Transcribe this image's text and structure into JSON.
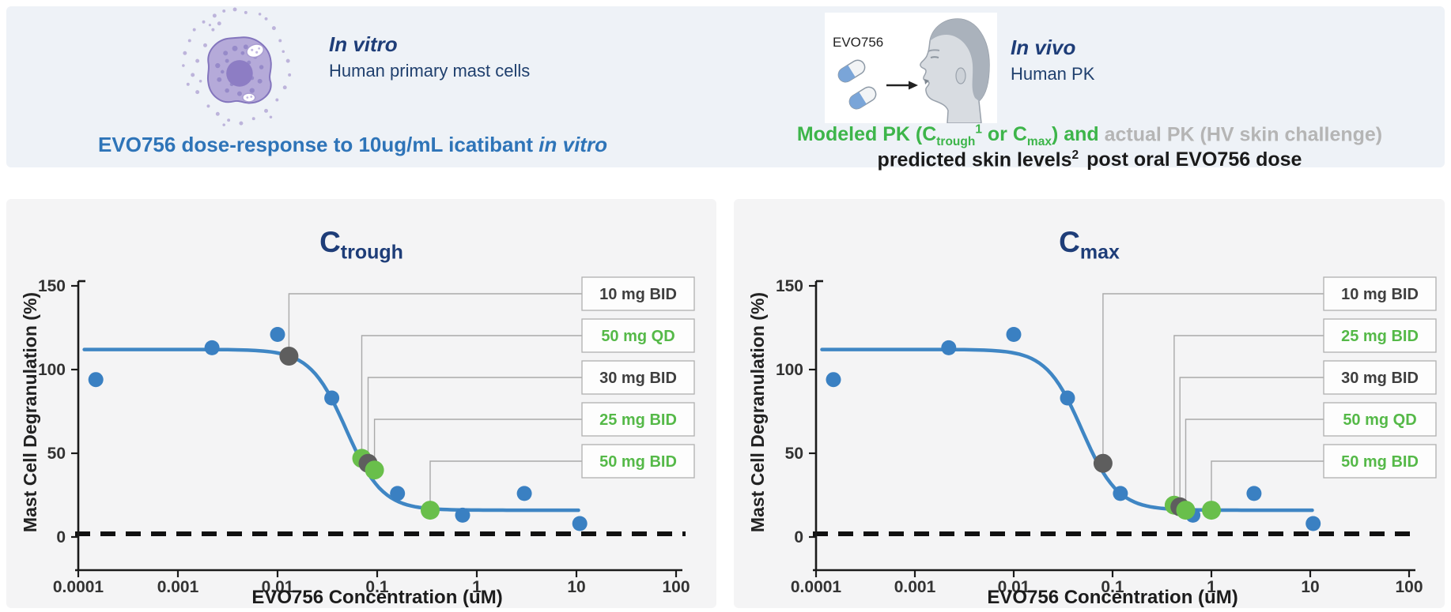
{
  "header": {
    "in_vitro": {
      "title": "In vitro",
      "subtitle": "Human primary mast cells"
    },
    "in_vivo": {
      "title": "In vivo",
      "subtitle": "Human PK",
      "pill_label": "EVO756"
    },
    "left_caption": {
      "main": "EVO756 dose-response to 10ug/mL icatibant ",
      "italic_suffix": "in vitro"
    },
    "right_caption": {
      "line1": {
        "p1": "Modeled PK (C",
        "sub1": "trough",
        "sup1": "1",
        "p2": " or C",
        "sub2": "max",
        "p3": ") and ",
        "gray_part": "actual PK (HV skin challenge)"
      },
      "line2": {
        "main": "predicted skin levels",
        "sup": "2",
        "rest": "post oral EVO756 dose"
      }
    }
  },
  "colors": {
    "navy": "#1e3d78",
    "caption_blue": "#2e74b8",
    "caption_green": "#3db54a",
    "caption_gray": "#b5b5b5",
    "curve_blue": "#3f86c4",
    "dot_blue": "#3a80c2",
    "dot_gray": "#5e5e5e",
    "dot_green": "#69bf4b",
    "legend_dark": "#3f3f3f",
    "legend_green": "#55b948",
    "connector": "#a9a9a9",
    "axis": "#1a1a1a"
  },
  "chart_data": [
    {
      "id": "Ctrough",
      "type": "scatter",
      "title_main": "C",
      "title_sub": "trough",
      "xlabel": "EVO756 Concentration (uM)",
      "ylabel": "Mast Cell Degranulation (%)",
      "x_scale": "log",
      "x_ticks": [
        0.0001,
        0.001,
        0.01,
        0.1,
        1,
        10,
        100
      ],
      "x_tick_labels": [
        "0.0001",
        "0.001",
        "0.01",
        "0.1",
        "1",
        "10",
        "100"
      ],
      "y_ticks": [
        0,
        50,
        100,
        150
      ],
      "ylim": [
        0,
        150
      ],
      "baseline": {
        "y": 0,
        "style": "dashed"
      },
      "series": [
        {
          "name": "EVO756 in vitro dose-response (human primary mast cells)",
          "marker": "circle",
          "color_key": "dot_blue",
          "points": [
            [
              0.00015,
              94
            ],
            [
              0.0022,
              113
            ],
            [
              0.01,
              121
            ],
            [
              0.035,
              83
            ],
            [
              0.16,
              26
            ],
            [
              0.72,
              13
            ],
            [
              3,
              26
            ],
            [
              10.8,
              8
            ]
          ]
        }
      ],
      "curve_fit": {
        "type": "4PL",
        "top": 112,
        "bottom": 16,
        "ic50_uM": 0.049,
        "hill": 2.4
      },
      "callouts": [
        {
          "label": "10 mg BID",
          "text_color": "dark",
          "marker_color": "gray",
          "point": [
            0.013,
            108
          ]
        },
        {
          "label": "50 mg QD",
          "text_color": "green",
          "marker_color": "green",
          "point": [
            0.07,
            47
          ]
        },
        {
          "label": "30 mg BID",
          "text_color": "dark",
          "marker_color": "gray",
          "point": [
            0.081,
            44
          ]
        },
        {
          "label": "25 mg BID",
          "text_color": "green",
          "marker_color": "green",
          "point": [
            0.094,
            40
          ]
        },
        {
          "label": "50 mg BID",
          "text_color": "green",
          "marker_color": "green",
          "point": [
            0.34,
            16
          ]
        }
      ]
    },
    {
      "id": "Cmax",
      "type": "scatter",
      "title_main": "C",
      "title_sub": "max",
      "xlabel": "EVO756 Concentration (uM)",
      "ylabel": "Mast Cell Degranulation (%)",
      "x_scale": "log",
      "x_ticks": [
        0.0001,
        0.001,
        0.01,
        0.1,
        1,
        10,
        100
      ],
      "x_tick_labels": [
        "0.0001",
        "0.001",
        "0.01",
        "0.1",
        "1",
        "10",
        "100"
      ],
      "y_ticks": [
        0,
        50,
        100,
        150
      ],
      "ylim": [
        0,
        150
      ],
      "baseline": {
        "y": 0,
        "style": "dashed"
      },
      "series": [
        {
          "name": "EVO756 in vitro dose-response (human primary mast cells)",
          "marker": "circle",
          "color_key": "dot_blue",
          "points": [
            [
              0.00015,
              94
            ],
            [
              0.0022,
              113
            ],
            [
              0.01,
              121
            ],
            [
              0.035,
              83
            ],
            [
              0.12,
              26
            ],
            [
              0.65,
              13
            ],
            [
              2.7,
              26
            ],
            [
              10.7,
              8
            ]
          ]
        }
      ],
      "curve_fit": {
        "type": "4PL",
        "top": 112,
        "bottom": 16,
        "ic50_uM": 0.049,
        "hill": 2.4
      },
      "callouts": [
        {
          "label": "10 mg BID",
          "text_color": "dark",
          "marker_color": "gray",
          "point": [
            0.08,
            44
          ]
        },
        {
          "label": "25 mg BID",
          "text_color": "green",
          "marker_color": "green",
          "point": [
            0.42,
            19
          ]
        },
        {
          "label": "30 mg BID",
          "text_color": "dark",
          "marker_color": "gray",
          "point": [
            0.48,
            18
          ]
        },
        {
          "label": "50 mg QD",
          "text_color": "green",
          "marker_color": "green",
          "point": [
            0.55,
            16
          ]
        },
        {
          "label": "50 mg BID",
          "text_color": "green",
          "marker_color": "green",
          "point": [
            1.0,
            16
          ]
        }
      ]
    }
  ]
}
